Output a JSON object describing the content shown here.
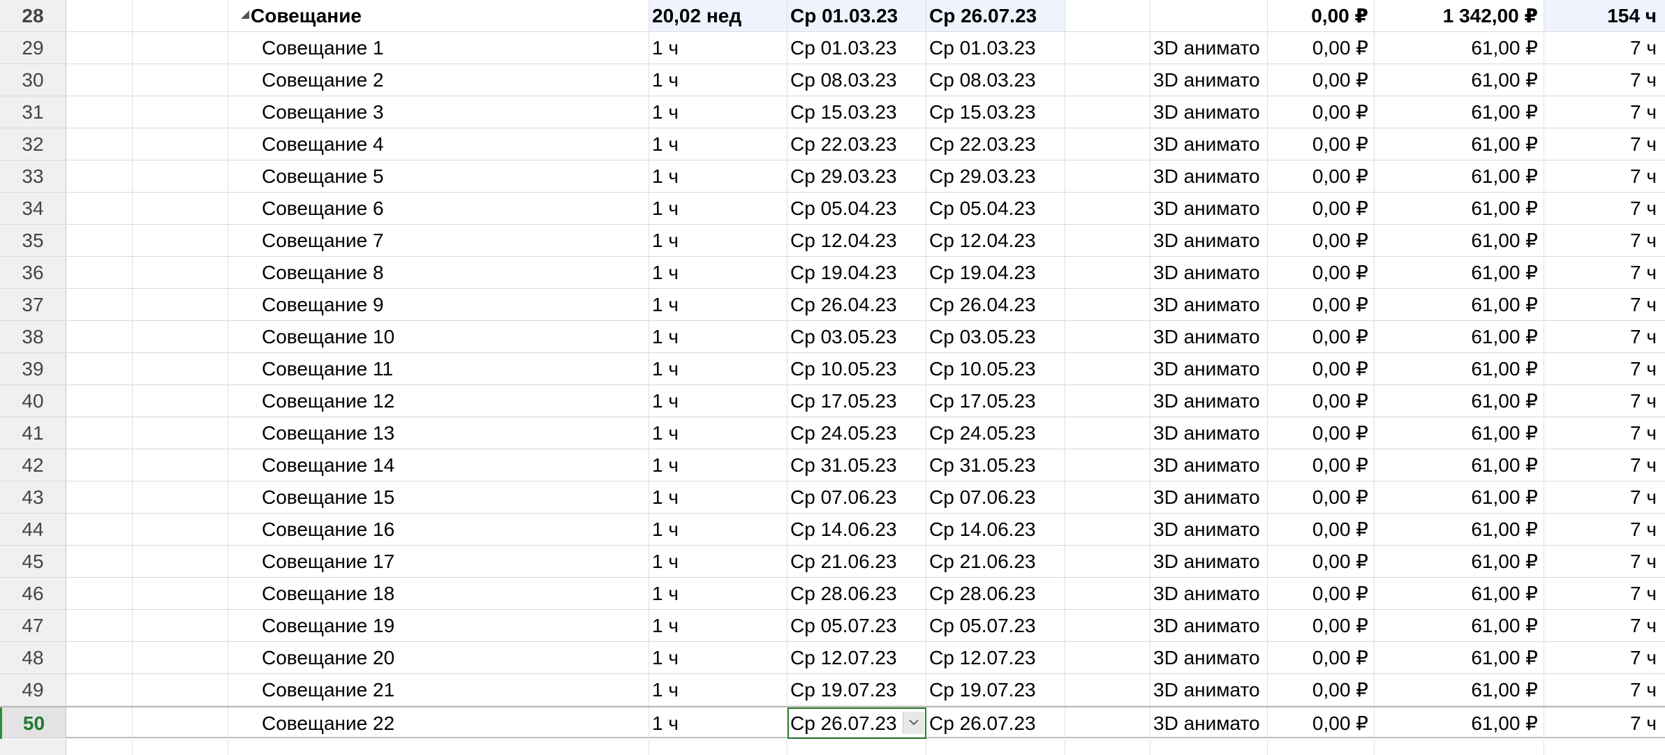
{
  "summary": {
    "id": "28",
    "name": "Совещание",
    "duration": "20,02 нед",
    "start": "Ср 01.03.23",
    "finish": "Ср 26.07.23",
    "predecessors": "",
    "resource": "",
    "fixed_cost": "0,00 ₽",
    "cost": "1 342,00 ₽",
    "work": "154 ч",
    "indicator_icon": "recurring-task-icon",
    "mode_icon": "auto-schedule-icon"
  },
  "tasks": [
    {
      "id": "29",
      "name": "Совещание 1",
      "duration": "1 ч",
      "start": "Ср 01.03.23",
      "finish": "Ср 01.03.23",
      "resource": "3D анимато",
      "fixed_cost": "0,00 ₽",
      "cost": "61,00 ₽",
      "work": "7 ч"
    },
    {
      "id": "30",
      "name": "Совещание 2",
      "duration": "1 ч",
      "start": "Ср 08.03.23",
      "finish": "Ср 08.03.23",
      "resource": "3D анимато",
      "fixed_cost": "0,00 ₽",
      "cost": "61,00 ₽",
      "work": "7 ч"
    },
    {
      "id": "31",
      "name": "Совещание 3",
      "duration": "1 ч",
      "start": "Ср 15.03.23",
      "finish": "Ср 15.03.23",
      "resource": "3D анимато",
      "fixed_cost": "0,00 ₽",
      "cost": "61,00 ₽",
      "work": "7 ч"
    },
    {
      "id": "32",
      "name": "Совещание 4",
      "duration": "1 ч",
      "start": "Ср 22.03.23",
      "finish": "Ср 22.03.23",
      "resource": "3D анимато",
      "fixed_cost": "0,00 ₽",
      "cost": "61,00 ₽",
      "work": "7 ч"
    },
    {
      "id": "33",
      "name": "Совещание 5",
      "duration": "1 ч",
      "start": "Ср 29.03.23",
      "finish": "Ср 29.03.23",
      "resource": "3D анимато",
      "fixed_cost": "0,00 ₽",
      "cost": "61,00 ₽",
      "work": "7 ч"
    },
    {
      "id": "34",
      "name": "Совещание 6",
      "duration": "1 ч",
      "start": "Ср 05.04.23",
      "finish": "Ср 05.04.23",
      "resource": "3D анимато",
      "fixed_cost": "0,00 ₽",
      "cost": "61,00 ₽",
      "work": "7 ч"
    },
    {
      "id": "35",
      "name": "Совещание 7",
      "duration": "1 ч",
      "start": "Ср 12.04.23",
      "finish": "Ср 12.04.23",
      "resource": "3D анимато",
      "fixed_cost": "0,00 ₽",
      "cost": "61,00 ₽",
      "work": "7 ч"
    },
    {
      "id": "36",
      "name": "Совещание 8",
      "duration": "1 ч",
      "start": "Ср 19.04.23",
      "finish": "Ср 19.04.23",
      "resource": "3D анимато",
      "fixed_cost": "0,00 ₽",
      "cost": "61,00 ₽",
      "work": "7 ч"
    },
    {
      "id": "37",
      "name": "Совещание 9",
      "duration": "1 ч",
      "start": "Ср 26.04.23",
      "finish": "Ср 26.04.23",
      "resource": "3D анимато",
      "fixed_cost": "0,00 ₽",
      "cost": "61,00 ₽",
      "work": "7 ч"
    },
    {
      "id": "38",
      "name": "Совещание 10",
      "duration": "1 ч",
      "start": "Ср 03.05.23",
      "finish": "Ср 03.05.23",
      "resource": "3D анимато",
      "fixed_cost": "0,00 ₽",
      "cost": "61,00 ₽",
      "work": "7 ч"
    },
    {
      "id": "39",
      "name": "Совещание 11",
      "duration": "1 ч",
      "start": "Ср 10.05.23",
      "finish": "Ср 10.05.23",
      "resource": "3D анимато",
      "fixed_cost": "0,00 ₽",
      "cost": "61,00 ₽",
      "work": "7 ч"
    },
    {
      "id": "40",
      "name": "Совещание 12",
      "duration": "1 ч",
      "start": "Ср 17.05.23",
      "finish": "Ср 17.05.23",
      "resource": "3D анимато",
      "fixed_cost": "0,00 ₽",
      "cost": "61,00 ₽",
      "work": "7 ч"
    },
    {
      "id": "41",
      "name": "Совещание 13",
      "duration": "1 ч",
      "start": "Ср 24.05.23",
      "finish": "Ср 24.05.23",
      "resource": "3D анимато",
      "fixed_cost": "0,00 ₽",
      "cost": "61,00 ₽",
      "work": "7 ч"
    },
    {
      "id": "42",
      "name": "Совещание 14",
      "duration": "1 ч",
      "start": "Ср 31.05.23",
      "finish": "Ср 31.05.23",
      "resource": "3D анимато",
      "fixed_cost": "0,00 ₽",
      "cost": "61,00 ₽",
      "work": "7 ч"
    },
    {
      "id": "43",
      "name": "Совещание 15",
      "duration": "1 ч",
      "start": "Ср 07.06.23",
      "finish": "Ср 07.06.23",
      "resource": "3D анимато",
      "fixed_cost": "0,00 ₽",
      "cost": "61,00 ₽",
      "work": "7 ч"
    },
    {
      "id": "44",
      "name": "Совещание 16",
      "duration": "1 ч",
      "start": "Ср 14.06.23",
      "finish": "Ср 14.06.23",
      "resource": "3D анимато",
      "fixed_cost": "0,00 ₽",
      "cost": "61,00 ₽",
      "work": "7 ч"
    },
    {
      "id": "45",
      "name": "Совещание 17",
      "duration": "1 ч",
      "start": "Ср 21.06.23",
      "finish": "Ср 21.06.23",
      "resource": "3D анимато",
      "fixed_cost": "0,00 ₽",
      "cost": "61,00 ₽",
      "work": "7 ч"
    },
    {
      "id": "46",
      "name": "Совещание 18",
      "duration": "1 ч",
      "start": "Ср 28.06.23",
      "finish": "Ср 28.06.23",
      "resource": "3D анимато",
      "fixed_cost": "0,00 ₽",
      "cost": "61,00 ₽",
      "work": "7 ч"
    },
    {
      "id": "47",
      "name": "Совещание 19",
      "duration": "1 ч",
      "start": "Ср 05.07.23",
      "finish": "Ср 05.07.23",
      "resource": "3D анимато",
      "fixed_cost": "0,00 ₽",
      "cost": "61,00 ₽",
      "work": "7 ч"
    },
    {
      "id": "48",
      "name": "Совещание 20",
      "duration": "1 ч",
      "start": "Ср 12.07.23",
      "finish": "Ср 12.07.23",
      "resource": "3D анимато",
      "fixed_cost": "0,00 ₽",
      "cost": "61,00 ₽",
      "work": "7 ч"
    },
    {
      "id": "49",
      "name": "Совещание 21",
      "duration": "1 ч",
      "start": "Ср 19.07.23",
      "finish": "Ср 19.07.23",
      "resource": "3D анимато",
      "fixed_cost": "0,00 ₽",
      "cost": "61,00 ₽",
      "work": "7 ч"
    },
    {
      "id": "50",
      "name": "Совещание 22",
      "duration": "1 ч",
      "start": "Ср 26.07.23",
      "finish": "Ср 26.07.23",
      "resource": "3D анимато",
      "fixed_cost": "0,00 ₽",
      "cost": "61,00 ₽",
      "work": "7 ч"
    }
  ],
  "task_mode_icon": "manual-schedule-pin-icon",
  "selected_row_id": "50",
  "active_cell": "start",
  "colors": {
    "pin": "#1aa39a",
    "selection": "#2e7d32",
    "summary_highlight": "#eef3fd",
    "header_bg": "#f0f0f0"
  }
}
